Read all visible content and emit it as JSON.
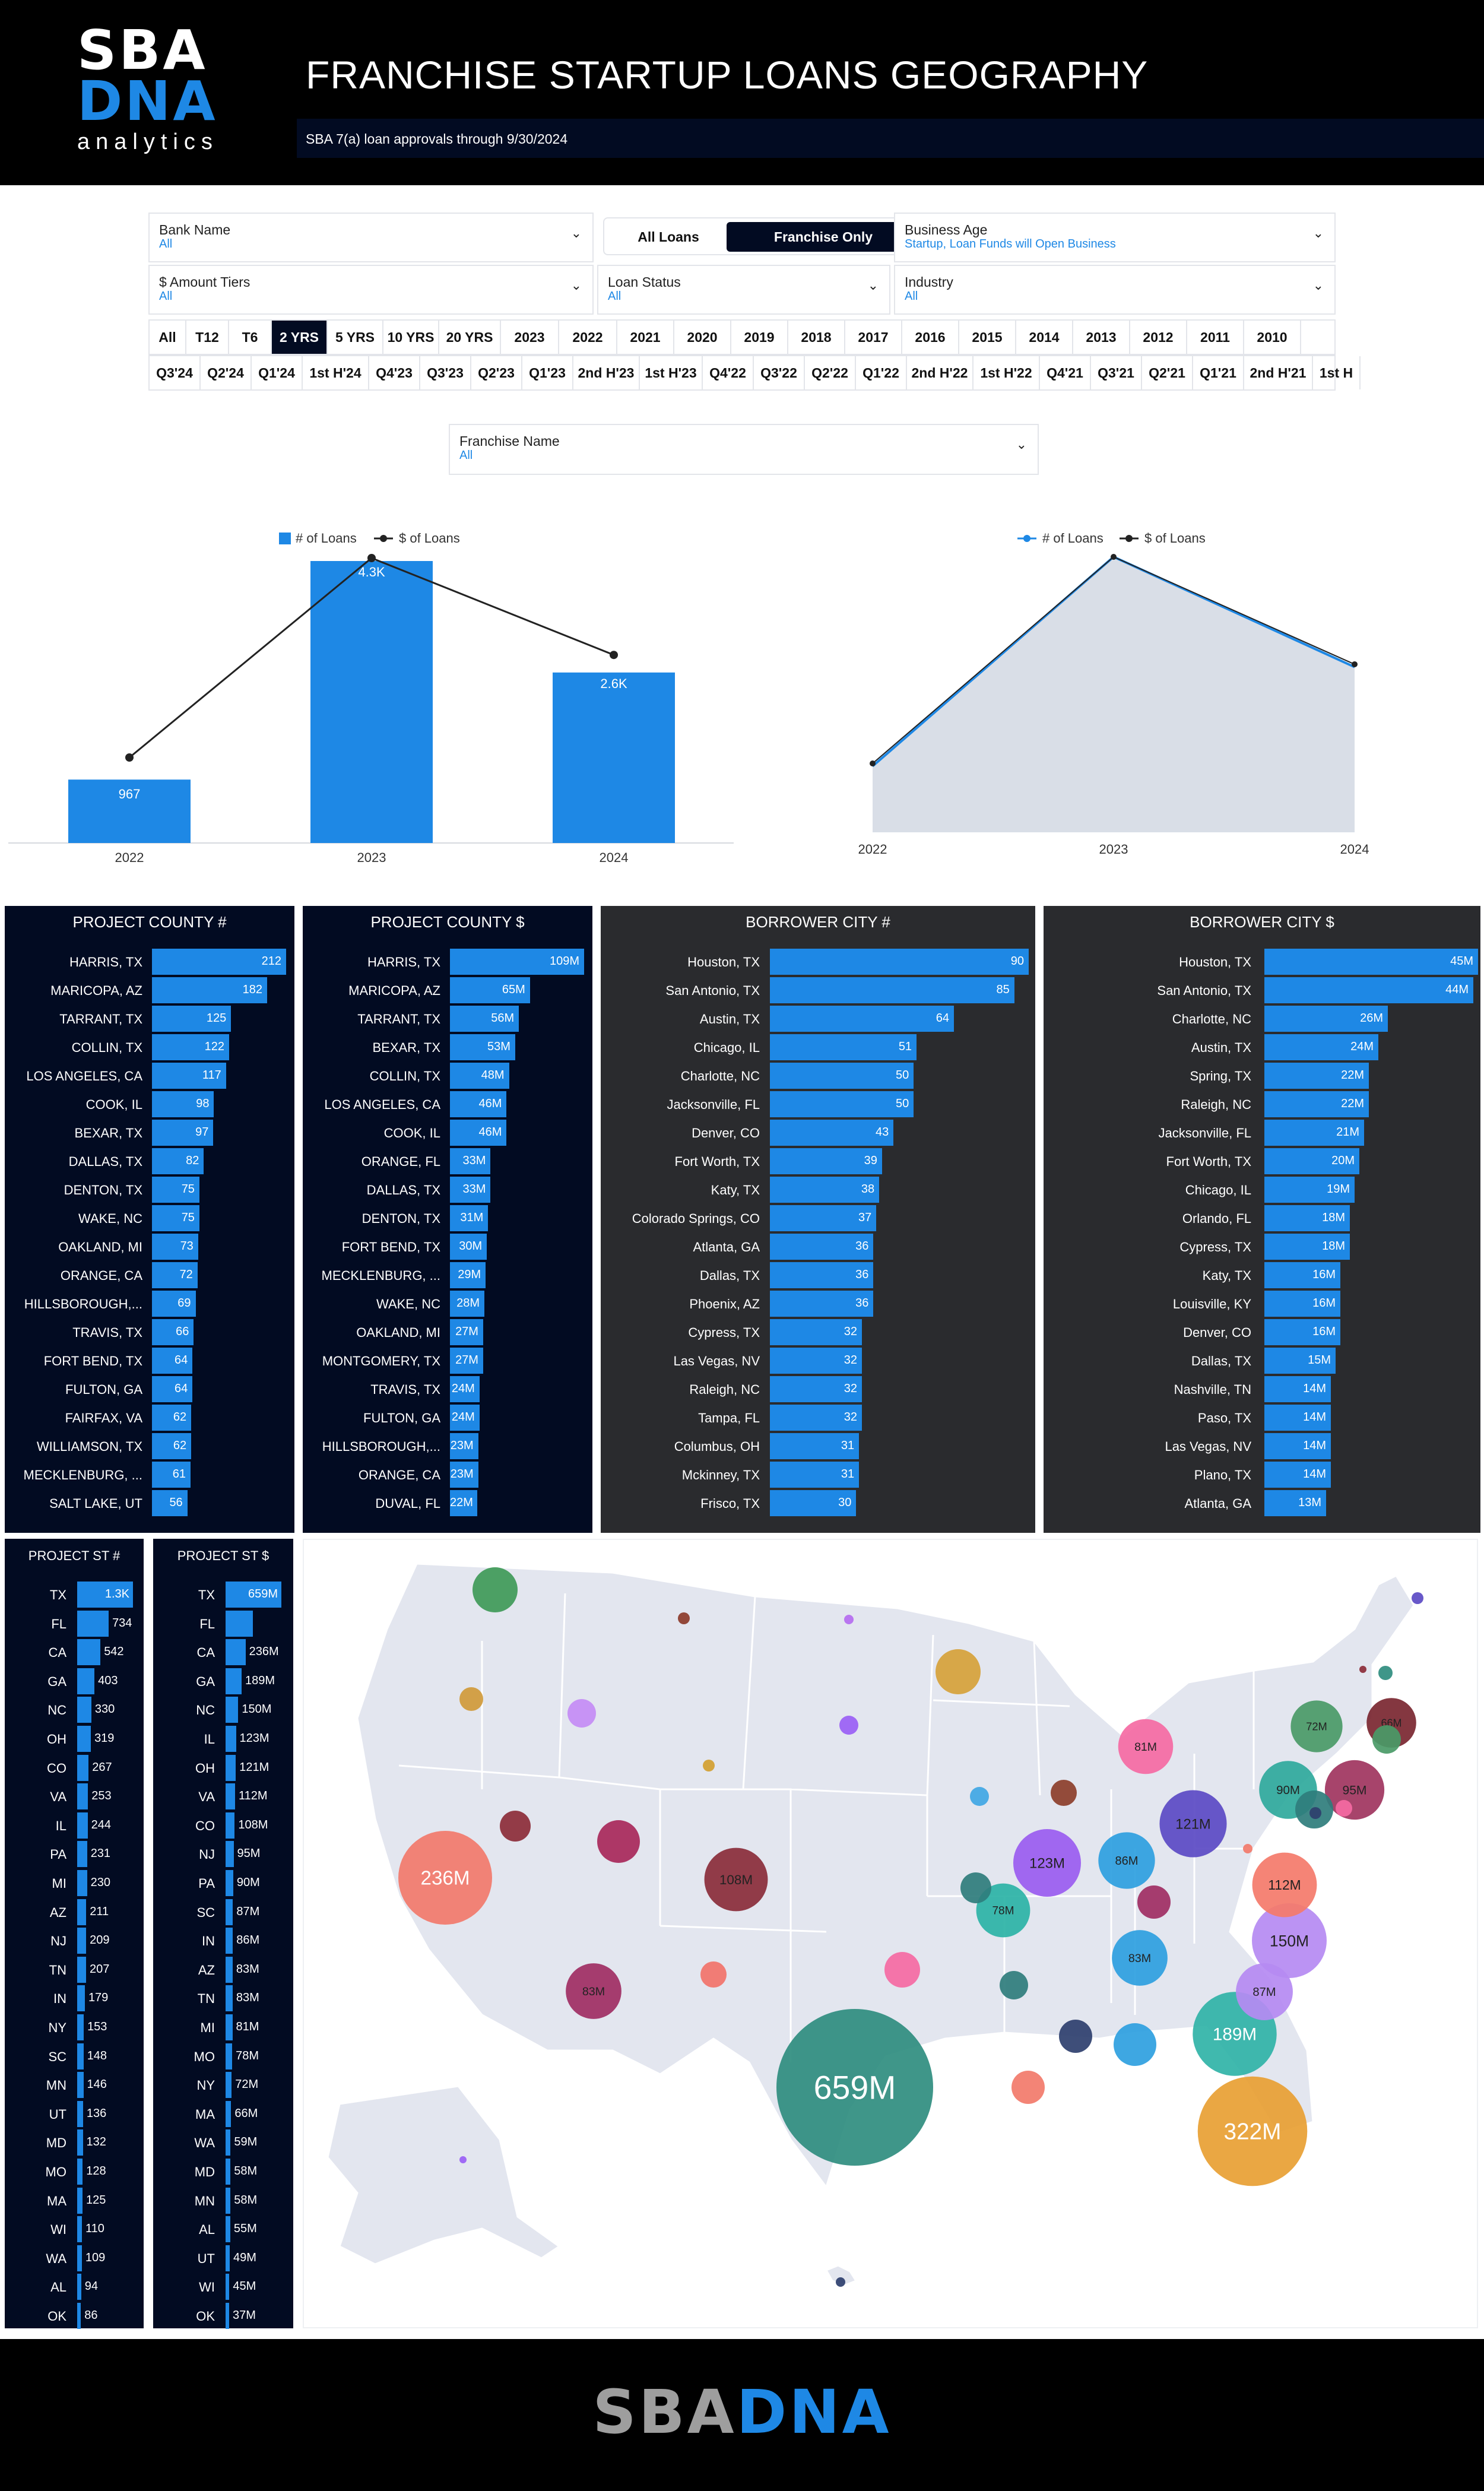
{
  "header": {
    "logo_line1": "SBA",
    "logo_line2": "DNA",
    "logo_line3": "analytics",
    "title": "FRANCHISE STARTUP LOANS GEOGRAPHY",
    "subtitle": "SBA 7(a) loan approvals through 9/30/2024"
  },
  "filters": {
    "bank_name": {
      "label": "Bank Name",
      "value": "All"
    },
    "toggle": {
      "all_loans": "All Loans",
      "franchise_only": "Franchise Only",
      "selected": "Franchise Only"
    },
    "business_age": {
      "label": "Business Age",
      "value": "Startup, Loan Funds will Open Business"
    },
    "amount_tiers": {
      "label": "$ Amount Tiers",
      "value": "All"
    },
    "loan_status": {
      "label": "Loan Status",
      "value": "All"
    },
    "industry": {
      "label": "Industry",
      "value": "All"
    },
    "franchise_name": {
      "label": "Franchise Name",
      "value": "All"
    }
  },
  "period_tabs": [
    "All",
    "T12",
    "T6",
    "2 YRS",
    "5 YRS",
    "10 YRS",
    "20 YRS",
    "2023",
    "2022",
    "2021",
    "2020",
    "2019",
    "2018",
    "2017",
    "2016",
    "2015",
    "2014",
    "2013",
    "2012",
    "2011",
    "2010"
  ],
  "period_active": "2 YRS",
  "quarter_tabs": [
    "Q3'24",
    "Q2'24",
    "Q1'24",
    "1st H'24",
    "Q4'23",
    "Q3'23",
    "Q2'23",
    "Q1'23",
    "2nd H'23",
    "1st H'23",
    "Q4'22",
    "Q3'22",
    "Q2'22",
    "Q1'22",
    "2nd H'22",
    "1st H'22",
    "Q4'21",
    "Q3'21",
    "Q2'21",
    "Q1'21",
    "2nd H'21",
    "1st H"
  ],
  "colors": {
    "accent": "#1e88e5",
    "navy": "#020b22",
    "dark": "#2a2b2e",
    "area": "#d9dee7"
  },
  "icons": {
    "dropdown": "chevron-down-icon"
  },
  "chart_data": [
    {
      "type": "bar",
      "legend": [
        "# of Loans",
        "$ of Loans"
      ],
      "categories": [
        "2022",
        "2023",
        "2024"
      ],
      "series": [
        {
          "name": "# of Loans",
          "values": [
            967,
            4300,
            2600
          ],
          "labels": [
            "967",
            "4.3K",
            "2.6K"
          ]
        },
        {
          "name": "$ of Loans",
          "values": [
            0.3,
            1.0,
            0.66
          ]
        }
      ]
    },
    {
      "type": "area",
      "legend": [
        "# of Loans",
        "$ of Loans"
      ],
      "categories": [
        "2022",
        "2023",
        "2024"
      ],
      "series": [
        {
          "name": "# of Loans",
          "values": [
            0.24,
            1.0,
            0.6
          ]
        },
        {
          "name": "$ of Loans",
          "values": [
            0.25,
            1.0,
            0.61
          ]
        }
      ]
    },
    {
      "type": "bar",
      "title": "PROJECT COUNTY #",
      "categories": [
        "HARRIS, TX",
        "MARICOPA, AZ",
        "TARRANT, TX",
        "COLLIN, TX",
        "LOS ANGELES, CA",
        "COOK, IL",
        "BEXAR, TX",
        "DALLAS, TX",
        "DENTON, TX",
        "WAKE, NC",
        "OAKLAND, MI",
        "ORANGE, CA",
        "HILLSBOROUGH,...",
        "TRAVIS, TX",
        "FORT BEND, TX",
        "FULTON, GA",
        "FAIRFAX, VA",
        "WILLIAMSON, TX",
        "MECKLENBURG, ...",
        "SALT LAKE, UT"
      ],
      "values": [
        212,
        182,
        125,
        122,
        117,
        98,
        97,
        82,
        75,
        75,
        73,
        72,
        69,
        66,
        64,
        64,
        62,
        62,
        61,
        56
      ],
      "labels": [
        "212",
        "182",
        "125",
        "122",
        "117",
        "98",
        "97",
        "82",
        "75",
        "75",
        "73",
        "72",
        "69",
        "66",
        "64",
        "64",
        "62",
        "62",
        "61",
        "56"
      ]
    },
    {
      "type": "bar",
      "title": "PROJECT COUNTY $",
      "categories": [
        "HARRIS, TX",
        "MARICOPA, AZ",
        "TARRANT, TX",
        "BEXAR, TX",
        "COLLIN, TX",
        "LOS ANGELES, CA",
        "COOK, IL",
        "ORANGE, FL",
        "DALLAS, TX",
        "DENTON, TX",
        "FORT BEND, TX",
        "MECKLENBURG, ...",
        "WAKE, NC",
        "OAKLAND, MI",
        "MONTGOMERY, TX",
        "TRAVIS, TX",
        "FULTON, GA",
        "HILLSBOROUGH,...",
        "ORANGE, CA",
        "DUVAL, FL"
      ],
      "values": [
        109,
        65,
        56,
        53,
        48,
        46,
        46,
        33,
        33,
        31,
        30,
        29,
        28,
        27,
        27,
        24,
        24,
        23,
        23,
        22
      ],
      "labels": [
        "109M",
        "65M",
        "56M",
        "53M",
        "48M",
        "46M",
        "46M",
        "33M",
        "33M",
        "31M",
        "30M",
        "29M",
        "28M",
        "27M",
        "27M",
        "24M",
        "24M",
        "23M",
        "23M",
        "22M"
      ]
    },
    {
      "type": "bar",
      "title": "BORROWER CITY #",
      "categories": [
        "Houston, TX",
        "San Antonio, TX",
        "Austin, TX",
        "Chicago, IL",
        "Charlotte, NC",
        "Jacksonville, FL",
        "Denver, CO",
        "Fort Worth, TX",
        "Katy, TX",
        "Colorado Springs, CO",
        "Atlanta, GA",
        "Dallas, TX",
        "Phoenix, AZ",
        "Cypress, TX",
        "Las Vegas, NV",
        "Raleigh, NC",
        "Tampa, FL",
        "Columbus, OH",
        "Mckinney, TX",
        "Frisco, TX"
      ],
      "values": [
        90,
        85,
        64,
        51,
        50,
        50,
        43,
        39,
        38,
        37,
        36,
        36,
        36,
        32,
        32,
        32,
        32,
        31,
        31,
        30
      ],
      "labels": [
        "90",
        "85",
        "64",
        "51",
        "50",
        "50",
        "43",
        "39",
        "38",
        "37",
        "36",
        "36",
        "36",
        "32",
        "32",
        "32",
        "32",
        "31",
        "31",
        "30"
      ]
    },
    {
      "type": "bar",
      "title": "BORROWER CITY $",
      "categories": [
        "Houston, TX",
        "San Antonio, TX",
        "Charlotte, NC",
        "Austin, TX",
        "Spring, TX",
        "Raleigh, NC",
        "Jacksonville, FL",
        "Fort Worth, TX",
        "Chicago, IL",
        "Orlando, FL",
        "Cypress, TX",
        "Katy, TX",
        "Louisville, KY",
        "Denver, CO",
        "Dallas, TX",
        "Nashville, TN",
        "Paso, TX",
        "Las Vegas, NV",
        "Plano, TX",
        "Atlanta, GA"
      ],
      "values": [
        45,
        44,
        26,
        24,
        22,
        22,
        21,
        20,
        19,
        18,
        18,
        16,
        16,
        16,
        15,
        14,
        14,
        14,
        14,
        13
      ],
      "labels": [
        "45M",
        "44M",
        "26M",
        "24M",
        "22M",
        "22M",
        "21M",
        "20M",
        "19M",
        "18M",
        "18M",
        "16M",
        "16M",
        "16M",
        "15M",
        "14M",
        "14M",
        "14M",
        "14M",
        "13M"
      ]
    },
    {
      "type": "bar",
      "title": "PROJECT ST #",
      "categories": [
        "TX",
        "FL",
        "CA",
        "GA",
        "NC",
        "OH",
        "CO",
        "VA",
        "IL",
        "PA",
        "MI",
        "AZ",
        "NJ",
        "TN",
        "IN",
        "NY",
        "SC",
        "MN",
        "UT",
        "MD",
        "MO",
        "MA",
        "WI",
        "WA",
        "AL",
        "OK"
      ],
      "values": [
        1300,
        734,
        542,
        403,
        330,
        319,
        267,
        253,
        244,
        231,
        230,
        211,
        209,
        207,
        179,
        153,
        148,
        146,
        136,
        132,
        128,
        125,
        110,
        109,
        94,
        86
      ],
      "labels": [
        "1.3K",
        "734",
        "542",
        "403",
        "330",
        "319",
        "267",
        "253",
        "244",
        "231",
        "230",
        "211",
        "209",
        "207",
        "179",
        "153",
        "148",
        "146",
        "136",
        "132",
        "128",
        "125",
        "110",
        "109",
        "94",
        "86"
      ]
    },
    {
      "type": "bar",
      "title": "PROJECT ST $",
      "categories": [
        "TX",
        "FL",
        "CA",
        "GA",
        "NC",
        "IL",
        "OH",
        "VA",
        "CO",
        "NJ",
        "PA",
        "SC",
        "IN",
        "AZ",
        "TN",
        "MI",
        "MO",
        "NY",
        "MA",
        "WA",
        "MD",
        "MN",
        "AL",
        "UT",
        "WI",
        "OK"
      ],
      "values": [
        659,
        322,
        236,
        189,
        150,
        123,
        121,
        112,
        108,
        95,
        90,
        87,
        86,
        83,
        83,
        81,
        78,
        72,
        66,
        59,
        58,
        58,
        55,
        49,
        45,
        37
      ],
      "labels": [
        "659M",
        "",
        "236M",
        "189M",
        "150M",
        "123M",
        "121M",
        "112M",
        "108M",
        "95M",
        "90M",
        "87M",
        "86M",
        "83M",
        "83M",
        "81M",
        "78M",
        "72M",
        "66M",
        "59M",
        "58M",
        "58M",
        "55M",
        "49M",
        "45M",
        "37M"
      ]
    },
    {
      "type": "scatter",
      "title": "",
      "bubbles": [
        {
          "state": "TX",
          "value": 659,
          "label": "659M",
          "color": "#2f8d7f"
        },
        {
          "state": "FL",
          "value": 322,
          "label": "322M",
          "color": "#e8a033"
        },
        {
          "state": "CA",
          "value": 236,
          "label": "236M",
          "color": "#f27a6b"
        },
        {
          "state": "GA",
          "value": 189,
          "label": "189M",
          "color": "#30b3a7"
        },
        {
          "state": "NC",
          "value": 150,
          "label": "150M",
          "color": "#b58af2"
        },
        {
          "state": "IL",
          "value": 123,
          "label": "123M",
          "color": "#9a5cf0"
        },
        {
          "state": "OH",
          "value": 121,
          "label": "121M",
          "color": "#5b4ac4"
        },
        {
          "state": "VA",
          "value": 112,
          "label": "112M",
          "color": "#f47a6a"
        },
        {
          "state": "CO",
          "value": 108,
          "label": "108M",
          "color": "#8a2d3a"
        },
        {
          "state": "NJ",
          "value": 95,
          "label": "95M",
          "color": "#a0345e"
        },
        {
          "state": "PA",
          "value": 90,
          "label": "90M",
          "color": "#2fa99c"
        },
        {
          "state": "SC",
          "value": 87,
          "label": "87M",
          "color": "#b58af2"
        },
        {
          "state": "IN",
          "value": 86,
          "label": "86M",
          "color": "#2e9fe0"
        },
        {
          "state": "AZ",
          "value": 83,
          "label": "83M",
          "color": "#a02e63"
        },
        {
          "state": "TN",
          "value": 83,
          "label": "83M",
          "color": "#2e9fe0"
        },
        {
          "state": "MI",
          "value": 81,
          "label": "81M",
          "color": "#f56aa3"
        },
        {
          "state": "MO",
          "value": 78,
          "label": "78M",
          "color": "#2bb3a6"
        },
        {
          "state": "NY",
          "value": 72,
          "label": "72M",
          "color": "#4a9a67"
        },
        {
          "state": "MA",
          "value": 66,
          "label": "66M",
          "color": "#7a2630"
        }
      ]
    }
  ]
}
